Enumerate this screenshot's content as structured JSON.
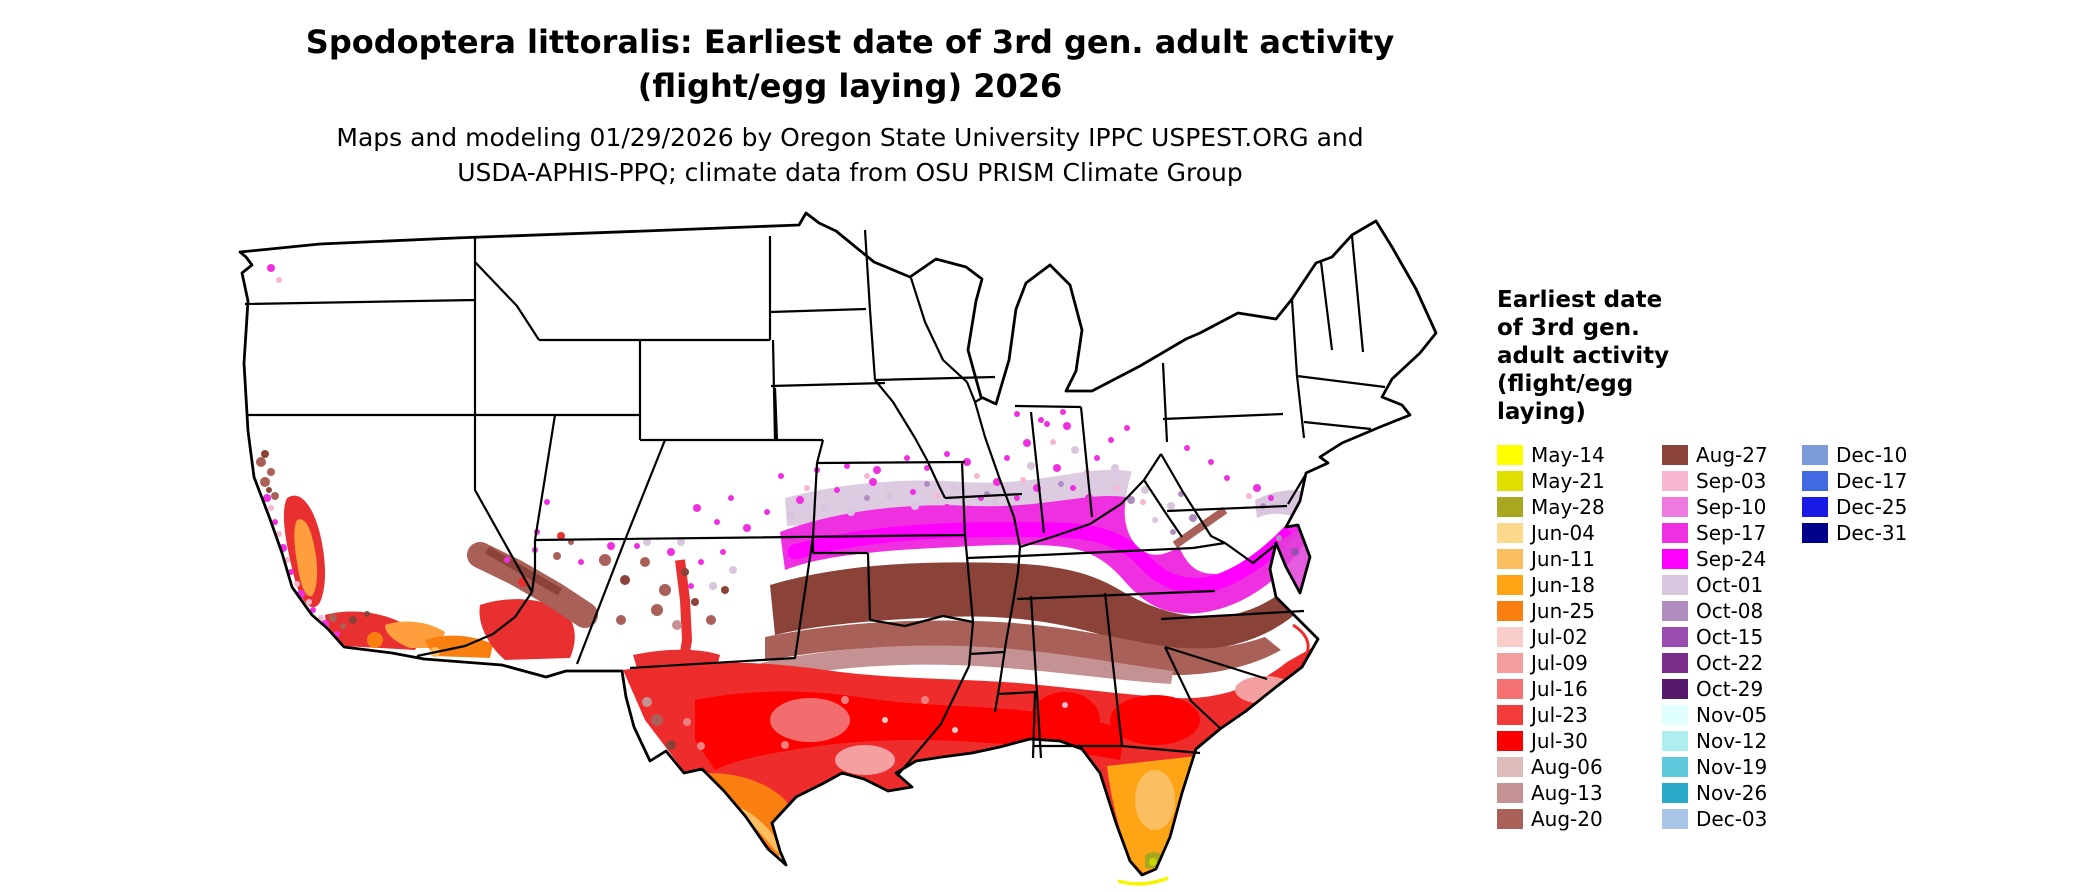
{
  "title": {
    "line1": "Spodoptera littoralis: Earliest date of 3rd gen. adult activity",
    "line2": "(flight/egg laying) 2026"
  },
  "subtitle": {
    "line1": "Maps and modeling 01/29/2026 by Oregon State University IPPC USPEST.ORG and",
    "line2": "USDA-APHIS-PPQ; climate data from OSU PRISM Climate Group"
  },
  "map": {
    "region": "Contiguous United States",
    "no_data_color": "#ffffff",
    "state_border_color": "#000000"
  },
  "legend": {
    "title": "Earliest date\nof 3rd gen.\nadult activity\n(flight/egg\nlaying)",
    "columns": [
      15,
      15,
      4
    ],
    "entries": [
      {
        "label": "May-14",
        "color": "#FFFF00"
      },
      {
        "label": "May-21",
        "color": "#DFDF00"
      },
      {
        "label": "May-28",
        "color": "#A8A820"
      },
      {
        "label": "Jun-04",
        "color": "#FBD88C"
      },
      {
        "label": "Jun-11",
        "color": "#FBBE60"
      },
      {
        "label": "Jun-18",
        "color": "#FFA415"
      },
      {
        "label": "Jun-25",
        "color": "#F98010"
      },
      {
        "label": "Jul-02",
        "color": "#F8CCC8"
      },
      {
        "label": "Jul-09",
        "color": "#F49E9E"
      },
      {
        "label": "Jul-16",
        "color": "#F47272"
      },
      {
        "label": "Jul-23",
        "color": "#F23C3C"
      },
      {
        "label": "Jul-30",
        "color": "#FB0000"
      },
      {
        "label": "Aug-06",
        "color": "#DDBCBC"
      },
      {
        "label": "Aug-13",
        "color": "#C49292"
      },
      {
        "label": "Aug-20",
        "color": "#A86058"
      },
      {
        "label": "Aug-27",
        "color": "#8A4239"
      },
      {
        "label": "Sep-03",
        "color": "#F7B6D2"
      },
      {
        "label": "Sep-10",
        "color": "#EE79DF"
      },
      {
        "label": "Sep-17",
        "color": "#EE30E0"
      },
      {
        "label": "Sep-24",
        "color": "#FF00FF"
      },
      {
        "label": "Oct-01",
        "color": "#D9C6DE"
      },
      {
        "label": "Oct-08",
        "color": "#B08CC0"
      },
      {
        "label": "Oct-15",
        "color": "#9A4FB0"
      },
      {
        "label": "Oct-22",
        "color": "#7B2D8B"
      },
      {
        "label": "Oct-29",
        "color": "#54196B"
      },
      {
        "label": "Nov-05",
        "color": "#E0FFFF"
      },
      {
        "label": "Nov-12",
        "color": "#AFEEEE"
      },
      {
        "label": "Nov-19",
        "color": "#5FC9DC"
      },
      {
        "label": "Nov-26",
        "color": "#29A8C8"
      },
      {
        "label": "Dec-03",
        "color": "#A9C6E8"
      },
      {
        "label": "Dec-10",
        "color": "#7B9CD9"
      },
      {
        "label": "Dec-17",
        "color": "#4169E1"
      },
      {
        "label": "Dec-25",
        "color": "#1A1AE6"
      },
      {
        "label": "Dec-31",
        "color": "#00008B"
      }
    ]
  }
}
